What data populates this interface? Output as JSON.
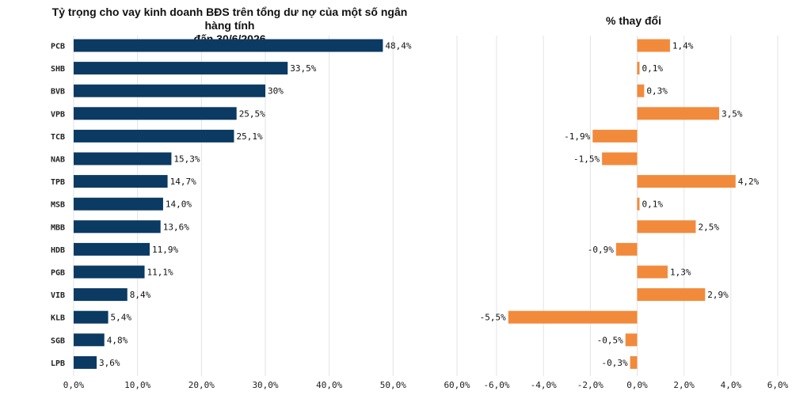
{
  "chart_data": [
    {
      "type": "bar",
      "orientation": "horizontal",
      "title_line1": "Tỷ trọng cho vay kinh doanh BĐS trên tổng dư nợ của một số ngân hàng tính",
      "title_line2": "đến 30/6/2026",
      "categories": [
        "PCB",
        "SHB",
        "BVB",
        "VPB",
        "TCB",
        "NAB",
        "TPB",
        "MSB",
        "MBB",
        "HDB",
        "PGB",
        "VIB",
        "KLB",
        "SGB",
        "LPB"
      ],
      "values": [
        48.4,
        33.5,
        30,
        25.5,
        25.1,
        15.3,
        14.7,
        14.0,
        13.6,
        11.9,
        11.1,
        8.4,
        5.4,
        4.8,
        3.6
      ],
      "data_labels": [
        "48,4%",
        "33,5%",
        "30%",
        "25,5%",
        "25,1%",
        "15,3%",
        "14,7%",
        "14,0%",
        "13,6%",
        "11,9%",
        "11,1%",
        "8,4%",
        "5,4%",
        "4,8%",
        "3,6%"
      ],
      "xlim": [
        0,
        60
      ],
      "tick_values": [
        0,
        10,
        20,
        30,
        40,
        50,
        60
      ],
      "tick_labels": [
        "0,0%",
        "10,0%",
        "20,0%",
        "30,0%",
        "40,0%",
        "50,0%",
        "60,0%"
      ],
      "grid": true,
      "color": "#0b3a63"
    },
    {
      "type": "bar",
      "orientation": "horizontal",
      "title": "% thay đổi",
      "categories": [
        "PCB",
        "SHB",
        "BVB",
        "VPB",
        "TCB",
        "NAB",
        "TPB",
        "MSB",
        "MBB",
        "HDB",
        "PGB",
        "VIB",
        "KLB",
        "SGB",
        "LPB"
      ],
      "values": [
        1.4,
        0.1,
        0.3,
        3.5,
        -1.9,
        -1.5,
        4.2,
        0.1,
        2.5,
        -0.9,
        1.3,
        2.9,
        -5.5,
        -0.5,
        -0.3
      ],
      "data_labels": [
        "1,4%",
        "0,1%",
        "0,3%",
        "3,5%",
        "-1,9%",
        "-1,5%",
        "4,2%",
        "0,1%",
        "2,5%",
        "-0,9%",
        "1,3%",
        "2,9%",
        "-5,5%",
        "-0,5%",
        "-0,3%"
      ],
      "xlim": [
        -6,
        6
      ],
      "tick_values": [
        -6,
        -4,
        -2,
        0,
        2,
        4,
        6
      ],
      "tick_labels": [
        "-6,0%",
        "-4,0%",
        "-2,0%",
        "0,0%",
        "2,0%",
        "4,0%",
        "6,0%"
      ],
      "grid": true,
      "color": "#f28a3c"
    }
  ]
}
